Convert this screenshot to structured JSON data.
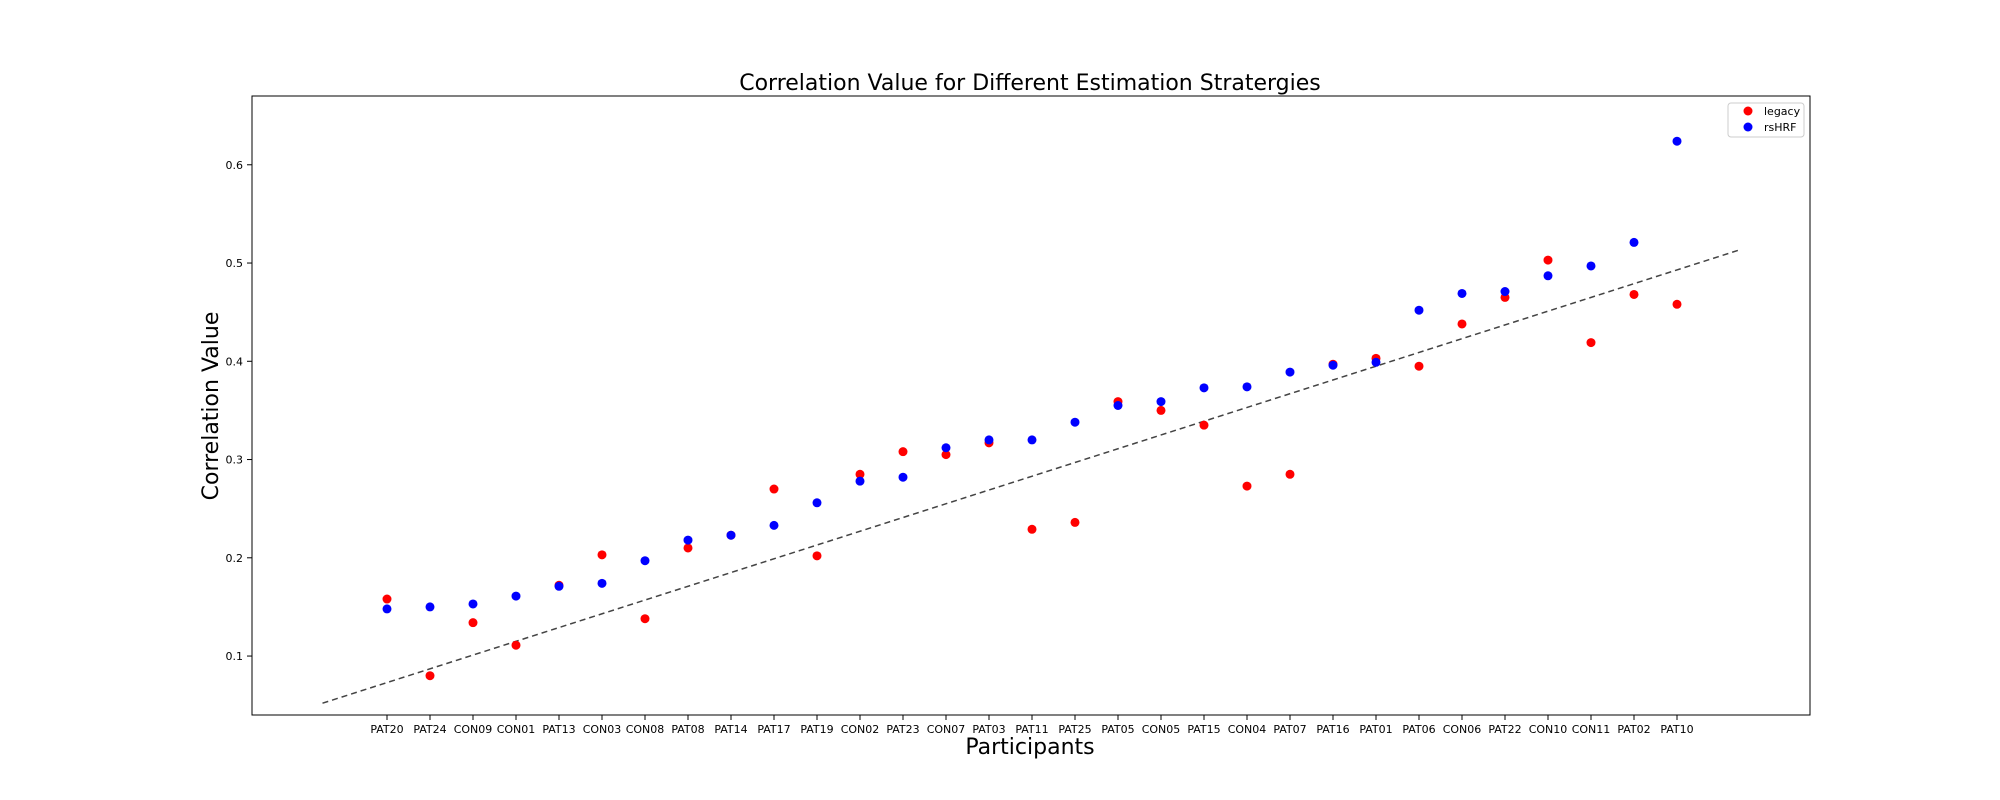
{
  "chart_data": {
    "type": "scatter",
    "title": "Correlation Value for Different Estimation Stratergies",
    "xlabel": "Participants",
    "ylabel": "Correlation Value",
    "ylim": [
      0.04,
      0.67
    ],
    "yticks": [
      0.1,
      0.2,
      0.3,
      0.4,
      0.5,
      0.6
    ],
    "categories": [
      "PAT20",
      "PAT24",
      "CON09",
      "CON01",
      "PAT13",
      "CON03",
      "CON08",
      "PAT08",
      "PAT14",
      "PAT17",
      "PAT19",
      "CON02",
      "PAT23",
      "CON07",
      "PAT03",
      "PAT11",
      "PAT25",
      "PAT05",
      "CON05",
      "PAT15",
      "CON04",
      "PAT07",
      "PAT16",
      "PAT01",
      "PAT06",
      "CON06",
      "PAT22",
      "CON10",
      "CON11",
      "PAT02",
      "PAT10"
    ],
    "series": [
      {
        "name": "legacy",
        "color": "#ff0000",
        "values": [
          0.158,
          0.08,
          0.134,
          0.111,
          0.172,
          0.203,
          0.138,
          0.21,
          0.223,
          0.27,
          0.202,
          0.285,
          0.308,
          0.305,
          0.317,
          0.229,
          0.236,
          0.359,
          0.35,
          0.335,
          0.273,
          0.285,
          0.397,
          0.403,
          0.395,
          0.438,
          0.465,
          0.503,
          0.419,
          0.468,
          0.458
        ]
      },
      {
        "name": "rsHRF",
        "color": "#0000ff",
        "values": [
          0.148,
          0.15,
          0.153,
          0.161,
          0.171,
          0.174,
          0.197,
          0.218,
          0.223,
          0.233,
          0.256,
          0.278,
          0.282,
          0.312,
          0.32,
          0.32,
          0.338,
          0.355,
          0.359,
          0.373,
          0.374,
          0.389,
          0.396,
          0.399,
          0.452,
          0.469,
          0.471,
          0.487,
          0.497,
          0.521,
          0.624
        ]
      }
    ],
    "trendline": {
      "style": "dashed",
      "color": "#444444",
      "x_start": -1.5,
      "x_end": 31.5,
      "y_start": 0.052,
      "y_end": 0.514
    },
    "legend": {
      "position": "top-right"
    },
    "grid": false
  }
}
